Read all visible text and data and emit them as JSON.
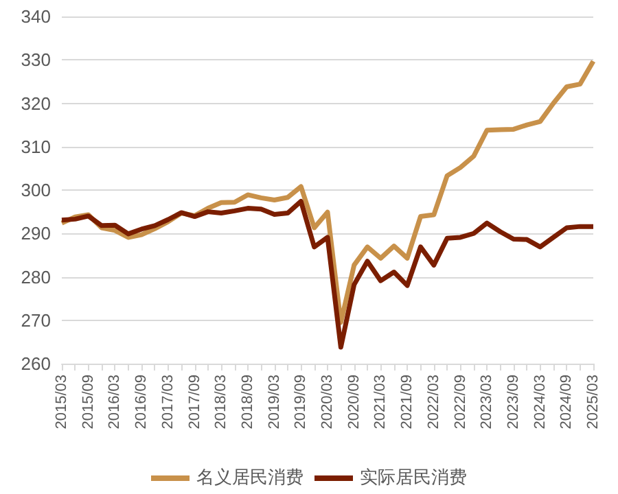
{
  "chart_data": {
    "type": "line",
    "categories": [
      "2015/03",
      null,
      "2015/09",
      null,
      "2016/03",
      null,
      "2016/09",
      null,
      "2017/03",
      null,
      "2017/09",
      null,
      "2018/03",
      null,
      "2018/09",
      null,
      "2019/03",
      null,
      "2019/09",
      null,
      "2020/03",
      null,
      "2020/09",
      null,
      "2021/03",
      null,
      "2021/09",
      null,
      "2022/03",
      null,
      "2022/09",
      null,
      "2023/03",
      null,
      "2023/09",
      null,
      "2024/03",
      null,
      "2024/09",
      null,
      "2025/03"
    ],
    "series": [
      {
        "name": "名义居民消费",
        "color": "#c8914a",
        "values": [
          292.4,
          293.8,
          294.3,
          291.3,
          290.7,
          289.1,
          289.7,
          291.1,
          292.7,
          294.7,
          294.1,
          295.8,
          297.1,
          297.2,
          298.9,
          298.2,
          297.7,
          298.3,
          300.8,
          291.3,
          294.9,
          269.5,
          282.7,
          286.9,
          284.3,
          287.1,
          284.3,
          293.9,
          294.3,
          303.3,
          305.2,
          307.8,
          313.8,
          313.9,
          314,
          315,
          315.8,
          320,
          323.8,
          324.4,
          329.7
        ]
      },
      {
        "name": "实际居民消费",
        "color": "#7b1e00",
        "values": [
          293.1,
          293.3,
          294,
          291.8,
          291.9,
          289.9,
          291,
          291.8,
          293.2,
          294.8,
          293.9,
          295,
          294.7,
          295.2,
          295.8,
          295.6,
          294.4,
          294.7,
          297.4,
          286.9,
          289.1,
          263.8,
          278.2,
          283.6,
          279.1,
          281.1,
          278,
          286.9,
          282.7,
          288.9,
          289.1,
          290,
          292.4,
          290.4,
          288.7,
          288.6,
          286.9,
          289.1,
          291.3,
          291.6,
          291.6
        ]
      }
    ],
    "ylim": [
      260,
      340
    ],
    "yticks": [
      260,
      270,
      280,
      290,
      300,
      310,
      320,
      330,
      340
    ],
    "grid": "y",
    "legend": "bottom",
    "marker": "none",
    "line_style": "solid"
  }
}
